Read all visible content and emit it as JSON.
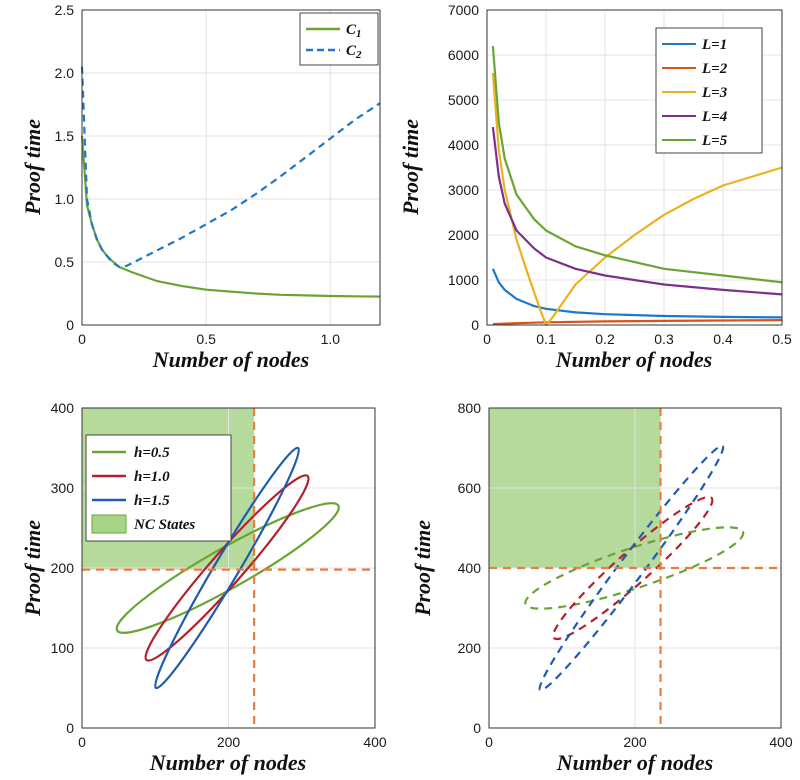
{
  "chart_data": [
    {
      "type": "line",
      "xlabel": "Number of nodes",
      "ylabel": "Proof time",
      "xlim": [
        0,
        1.2
      ],
      "ylim": [
        0,
        2.5
      ],
      "xticks": [
        "0",
        "0.5",
        "1.0"
      ],
      "xtick_values": [
        0,
        0.5,
        1.0
      ],
      "yticks": [
        "0",
        "0.5",
        "1.0",
        "1.5",
        "2.0",
        "2.5"
      ],
      "ytick_values": [
        0,
        0.5,
        1.0,
        1.5,
        2.0,
        2.5
      ],
      "grid": true,
      "legend_position": "top-right",
      "series": [
        {
          "name": "C1",
          "color": "#6aa534",
          "style": "solid",
          "x": [
            0.0,
            0.02,
            0.04,
            0.06,
            0.08,
            0.1,
            0.12,
            0.15,
            0.2,
            0.3,
            0.4,
            0.5,
            0.6,
            0.7,
            0.8,
            0.9,
            1.0,
            1.1,
            1.2
          ],
          "y": [
            1.5,
            0.95,
            0.8,
            0.68,
            0.6,
            0.55,
            0.51,
            0.46,
            0.42,
            0.35,
            0.31,
            0.28,
            0.265,
            0.25,
            0.24,
            0.235,
            0.23,
            0.228,
            0.225
          ]
        },
        {
          "name": "C2",
          "color": "#1f77c8",
          "style": "dashed",
          "x": [
            0.0,
            0.02,
            0.04,
            0.06,
            0.08,
            0.1,
            0.12,
            0.15,
            0.18,
            0.2,
            0.3,
            0.4,
            0.5,
            0.6,
            0.7,
            0.8,
            0.9,
            1.0,
            1.1,
            1.2
          ],
          "y": [
            2.05,
            1.0,
            0.8,
            0.68,
            0.6,
            0.55,
            0.5,
            0.46,
            0.47,
            0.49,
            0.59,
            0.69,
            0.8,
            0.91,
            1.04,
            1.18,
            1.33,
            1.48,
            1.63,
            1.76
          ]
        }
      ]
    },
    {
      "type": "line",
      "xlabel": "Number of nodes",
      "ylabel": "Proof time",
      "xlim": [
        0,
        0.5
      ],
      "ylim": [
        0,
        7000
      ],
      "xticks": [
        "0",
        "0.1",
        "0.2",
        "0.3",
        "0.4",
        "0.5"
      ],
      "xtick_values": [
        0,
        0.1,
        0.2,
        0.3,
        0.4,
        0.5
      ],
      "yticks": [
        "0",
        "1000",
        "2000",
        "3000",
        "4000",
        "5000",
        "6000",
        "7000"
      ],
      "ytick_values": [
        0,
        1000,
        2000,
        3000,
        4000,
        5000,
        6000,
        7000
      ],
      "grid": true,
      "legend_position": "top-right",
      "series": [
        {
          "name": "L=1",
          "color": "#1f77c8",
          "x": [
            0.01,
            0.02,
            0.03,
            0.05,
            0.08,
            0.1,
            0.15,
            0.2,
            0.3,
            0.4,
            0.5
          ],
          "y": [
            1250,
            950,
            780,
            580,
            420,
            360,
            280,
            240,
            200,
            180,
            170
          ]
        },
        {
          "name": "L=2",
          "color": "#d95319",
          "x": [
            0.01,
            0.05,
            0.1,
            0.2,
            0.3,
            0.4,
            0.5
          ],
          "y": [
            20,
            40,
            60,
            80,
            90,
            100,
            110
          ]
        },
        {
          "name": "L=3",
          "color": "#edb120",
          "x": [
            0.01,
            0.02,
            0.03,
            0.05,
            0.07,
            0.09,
            0.1,
            0.11,
            0.15,
            0.2,
            0.25,
            0.3,
            0.35,
            0.4,
            0.45,
            0.5
          ],
          "y": [
            5600,
            3900,
            3000,
            1900,
            1100,
            350,
            0,
            150,
            900,
            1500,
            2000,
            2450,
            2800,
            3100,
            3300,
            3500
          ]
        },
        {
          "name": "L=4",
          "color": "#7e2f8e",
          "x": [
            0.01,
            0.02,
            0.03,
            0.05,
            0.08,
            0.1,
            0.15,
            0.2,
            0.3,
            0.4,
            0.5
          ],
          "y": [
            4400,
            3300,
            2700,
            2100,
            1700,
            1500,
            1250,
            1100,
            900,
            780,
            680
          ]
        },
        {
          "name": "L=5",
          "color": "#6aa534",
          "x": [
            0.01,
            0.02,
            0.03,
            0.05,
            0.08,
            0.1,
            0.15,
            0.2,
            0.3,
            0.4,
            0.5
          ],
          "y": [
            6200,
            4500,
            3700,
            2900,
            2350,
            2100,
            1750,
            1550,
            1250,
            1100,
            950
          ]
        }
      ]
    },
    {
      "type": "scatter",
      "xlabel": "Number of nodes",
      "ylabel": "Proof time",
      "xlim": [
        0,
        400
      ],
      "ylim": [
        0,
        400
      ],
      "xticks": [
        "0",
        "200",
        "400"
      ],
      "xtick_values": [
        0,
        200,
        400
      ],
      "yticks": [
        "0",
        "100",
        "200",
        "300",
        "400"
      ],
      "ytick_values": [
        0,
        100,
        200,
        300,
        400
      ],
      "grid": true,
      "legend_position": "top-left",
      "region": {
        "name": "NC States",
        "color": "#a8d48a",
        "x": [
          0,
          235
        ],
        "y": [
          198,
          400
        ]
      },
      "threshold_lines": {
        "color": "#f07b3f",
        "x": 235,
        "y": 198
      },
      "series": [
        {
          "name": "h=0.5",
          "color": "#6aa534",
          "style": "solid",
          "center": [
            198,
            200
          ],
          "vertices": [
            [
              350,
              278
            ],
            [
              48,
              122
            ]
          ],
          "minor_half_width": 20
        },
        {
          "name": "h=1.0",
          "color": "#b5202a",
          "style": "solid",
          "center": [
            198,
            200
          ],
          "vertices": [
            [
              308,
              315
            ],
            [
              88,
              85
            ]
          ],
          "minor_half_width": 16
        },
        {
          "name": "h=1.5",
          "color": "#1f5bb0",
          "style": "solid",
          "center": [
            198,
            200
          ],
          "vertices": [
            [
              295,
              350
            ],
            [
              101,
              50
            ]
          ],
          "minor_half_width": 12
        }
      ]
    },
    {
      "type": "scatter",
      "xlabel": "Number of nodes",
      "ylabel": "Proof time",
      "xlim": [
        0,
        400
      ],
      "ylim": [
        0,
        800
      ],
      "xticks": [
        "0",
        "200",
        "400"
      ],
      "xtick_values": [
        0,
        200,
        400
      ],
      "yticks": [
        "0",
        "200",
        "400",
        "600",
        "800"
      ],
      "ytick_values": [
        0,
        200,
        400,
        600,
        800
      ],
      "grid": true,
      "region": {
        "color": "#a8d48a",
        "x": [
          0,
          235
        ],
        "y": [
          400,
          800
        ]
      },
      "threshold_lines": {
        "color": "#f07b3f",
        "x": 235,
        "y": 400
      },
      "series": [
        {
          "color": "#6aa534",
          "style": "dashed",
          "center": [
            198,
            400
          ],
          "vertices": [
            [
              348,
              490
            ],
            [
              50,
              310
            ]
          ],
          "minor_half_width": 20
        },
        {
          "color": "#b5202a",
          "style": "dashed",
          "center": [
            198,
            400
          ],
          "vertices": [
            [
              305,
              575
            ],
            [
              89,
              225
            ]
          ],
          "minor_half_width": 16
        },
        {
          "color": "#1f5bb0",
          "style": "dashed",
          "center": [
            198,
            400
          ],
          "vertices": [
            [
              320,
              705
            ],
            [
              70,
              95
            ]
          ],
          "minor_half_width": 12
        }
      ]
    }
  ]
}
